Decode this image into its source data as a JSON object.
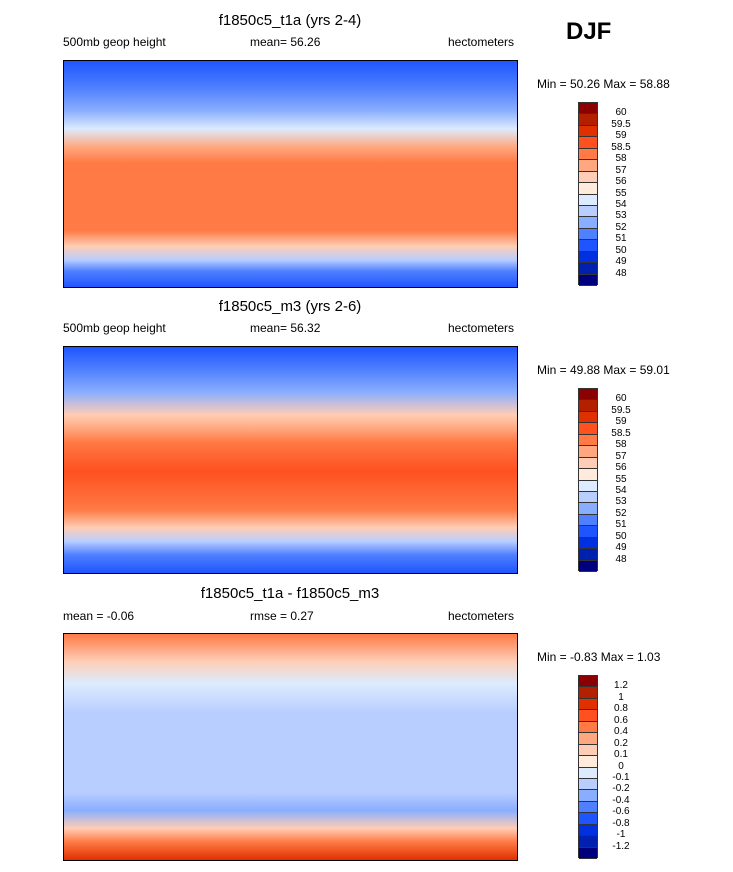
{
  "season": "DJF",
  "panels": [
    {
      "title": "f1850c5_t1a (yrs 2-4)",
      "left": "500mb geop height",
      "center": "mean=  56.26",
      "right": "hectometers",
      "minmax": "Min =  50.26 Max =  58.88",
      "bands": [
        [
          "#1F55FF",
          0
        ],
        [
          "#4F80FF",
          12
        ],
        [
          "#8AAEFF",
          22
        ],
        [
          "#DCEBFF",
          30
        ],
        [
          "#FFA880",
          38
        ],
        [
          "#FF7A45",
          45
        ],
        [
          "#FF7A45",
          75
        ],
        [
          "#FFCDB5",
          82
        ],
        [
          "#B8CEFF",
          88
        ],
        [
          "#4F80FF",
          93
        ],
        [
          "#1F55FF",
          100
        ]
      ]
    },
    {
      "title": "f1850c5_m3 (yrs 2-6)",
      "left": "500mb geop height",
      "center": "mean=  56.32",
      "right": "hectometers",
      "minmax": "Min =  49.88 Max =  59.01",
      "bands": [
        [
          "#1F55FF",
          0
        ],
        [
          "#4F80FF",
          10
        ],
        [
          "#8AAEFF",
          20
        ],
        [
          "#FFCDB5",
          30
        ],
        [
          "#FFA880",
          36
        ],
        [
          "#FF7A45",
          42
        ],
        [
          "#FF5020",
          55
        ],
        [
          "#FF7A45",
          72
        ],
        [
          "#FFCDB5",
          80
        ],
        [
          "#B8CEFF",
          86
        ],
        [
          "#4F80FF",
          92
        ],
        [
          "#1F55FF",
          100
        ]
      ]
    },
    {
      "title": "f1850c5_t1a - f1850c5_m3",
      "left": "mean =  -0.06",
      "center": "rmse =  0.27",
      "right": "hectometers",
      "minmax": "Min =  -0.83 Max =  1.03",
      "bands": [
        [
          "#FF7A45",
          0
        ],
        [
          "#FFCDB5",
          12
        ],
        [
          "#DCEBFF",
          22
        ],
        [
          "#B8CEFF",
          35
        ],
        [
          "#B8CEFF",
          70
        ],
        [
          "#8AAEFF",
          78
        ],
        [
          "#FFCDB5",
          86
        ],
        [
          "#FF7A45",
          92
        ],
        [
          "#E03000",
          100
        ]
      ]
    }
  ],
  "colorbars": {
    "colors": [
      "#8B0000",
      "#B22000",
      "#E03000",
      "#FF5020",
      "#FF7A45",
      "#FFA880",
      "#FFCDB5",
      "#FFEBDB",
      "#DCEBFF",
      "#B8CEFF",
      "#8AAEFF",
      "#4F80FF",
      "#1F55FF",
      "#0030E0",
      "#0020B0",
      "#00007F"
    ],
    "levels_abs": [
      "60",
      "59.5",
      "59",
      "58.5",
      "58",
      "57",
      "56",
      "55",
      "54",
      "53",
      "52",
      "51",
      "50",
      "49",
      "48"
    ],
    "levels_diff": [
      "1.2",
      "1",
      "0.8",
      "0.6",
      "0.4",
      "0.2",
      "0.1",
      "0",
      "-0.1",
      "-0.2",
      "-0.4",
      "-0.6",
      "-0.8",
      "-1",
      "-1.2"
    ]
  }
}
